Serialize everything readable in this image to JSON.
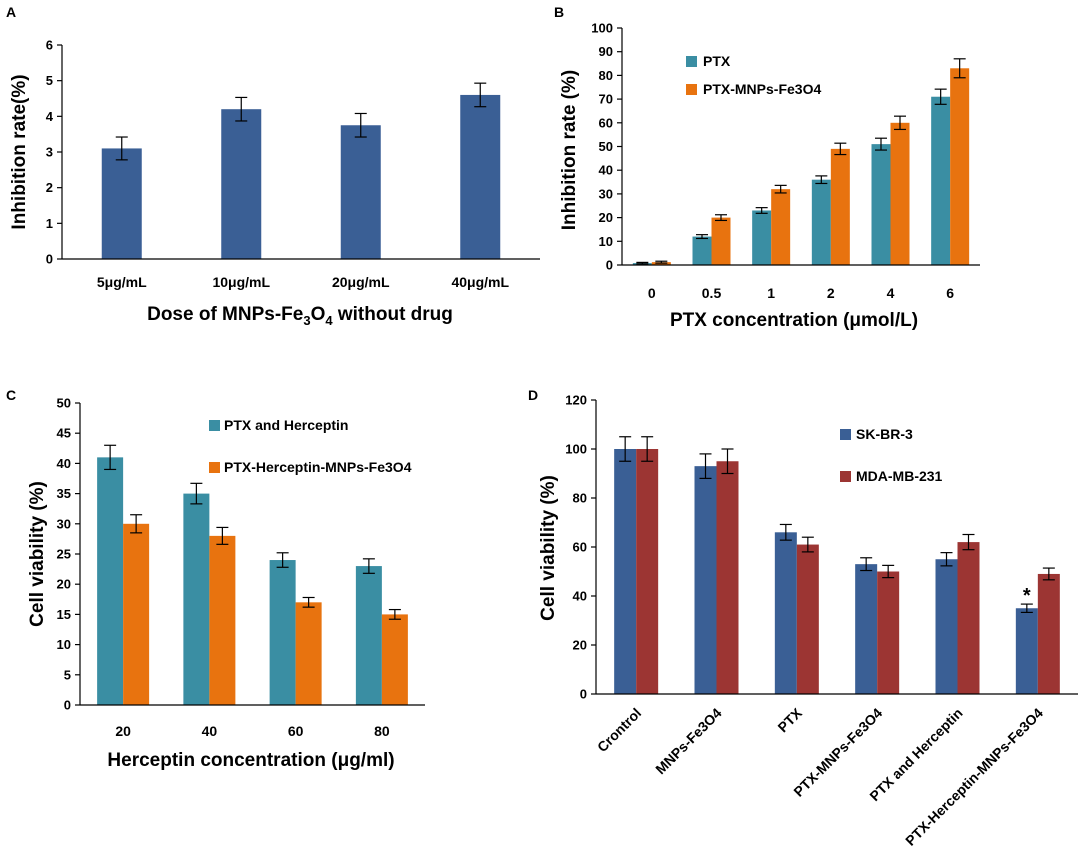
{
  "colors": {
    "blue": "#3a5f95",
    "teal": "#3a8ea3",
    "orange": "#e8730f",
    "red": "#9c3533",
    "axis": "#000000"
  },
  "chart_data": [
    {
      "id": "A",
      "panel_label": "A",
      "type": "bar",
      "ylabel": "Inhibition  rate(%)",
      "xlabel_parts": [
        "Dose of MNPs-Fe",
        "3",
        "O",
        "4",
        " without drug"
      ],
      "categories": [
        "5μg/mL",
        "10μg/mL",
        "20μg/mL",
        "40μg/mL"
      ],
      "ylim": [
        0,
        6
      ],
      "yticks": [
        "0",
        "1",
        "2",
        "3",
        "4",
        "5",
        "6"
      ],
      "series": [
        {
          "name": "MNPs-Fe3O4",
          "color_key": "blue",
          "values": [
            3.1,
            4.2,
            3.75,
            4.6
          ],
          "errors": [
            0.32,
            0.33,
            0.33,
            0.33
          ]
        }
      ]
    },
    {
      "id": "B",
      "panel_label": "B",
      "type": "bar",
      "ylabel": "Inhibition rate (%)",
      "xlabel": "PTX concentration (μmol/L)",
      "categories": [
        "0",
        "0.5",
        "1",
        "2",
        "4",
        "6"
      ],
      "ylim": [
        0,
        100
      ],
      "yticks": [
        "0",
        "10",
        "20",
        "30",
        "40",
        "50",
        "60",
        "70",
        "80",
        "90",
        "100"
      ],
      "series": [
        {
          "name": "PTX",
          "color_key": "teal",
          "values": [
            0.8,
            12,
            23,
            36,
            51,
            71
          ],
          "errors": [
            0.3,
            0.8,
            1.2,
            1.6,
            2.5,
            3.2
          ]
        },
        {
          "name": "PTX-MNPs-Fe3O4",
          "color_key": "orange",
          "values": [
            1.2,
            20,
            32,
            49,
            60,
            83
          ],
          "errors": [
            0.4,
            1.2,
            1.6,
            2.4,
            2.8,
            4.0
          ]
        }
      ]
    },
    {
      "id": "C",
      "panel_label": "C",
      "type": "bar",
      "ylabel": "Cell viability (%)",
      "xlabel": "Herceptin concentration (μg/ml)",
      "categories": [
        "20",
        "40",
        "60",
        "80"
      ],
      "ylim": [
        0,
        50
      ],
      "yticks": [
        "0",
        "5",
        "10",
        "15",
        "20",
        "25",
        "30",
        "35",
        "40",
        "45",
        "50"
      ],
      "series": [
        {
          "name": "PTX and Herceptin",
          "color_key": "teal",
          "values": [
            41,
            35,
            24,
            23
          ],
          "errors": [
            2.0,
            1.7,
            1.2,
            1.2
          ]
        },
        {
          "name": "PTX-Herceptin-MNPs-Fe3O4",
          "color_key": "orange",
          "values": [
            30,
            28,
            17,
            15
          ],
          "errors": [
            1.5,
            1.4,
            0.8,
            0.8
          ]
        }
      ]
    },
    {
      "id": "D",
      "panel_label": "D",
      "type": "bar",
      "ylabel": "Cell viability (%)",
      "xlabel": "",
      "categories": [
        "Crontrol",
        "MNPs-Fe3O4",
        "PTX",
        "PTX-MNPs-Fe3O4",
        "PTX and Herceptin",
        "PTX-Herceptin-MNPs-Fe3O4"
      ],
      "ylim": [
        0,
        120
      ],
      "yticks": [
        "0",
        "20",
        "40",
        "60",
        "80",
        "100",
        "120"
      ],
      "annotation": {
        "text": "*",
        "category_index": 5,
        "series_index": 0
      },
      "series": [
        {
          "name": "SK-BR-3",
          "color_key": "blue",
          "values": [
            100,
            93,
            66,
            53,
            55,
            35
          ],
          "errors": [
            5,
            5,
            3.2,
            2.6,
            2.7,
            1.7
          ]
        },
        {
          "name": "MDA-MB-231",
          "color_key": "red",
          "values": [
            100,
            95,
            61,
            50,
            62,
            49
          ],
          "errors": [
            5,
            5,
            3.0,
            2.5,
            3.1,
            2.4
          ]
        }
      ]
    }
  ]
}
